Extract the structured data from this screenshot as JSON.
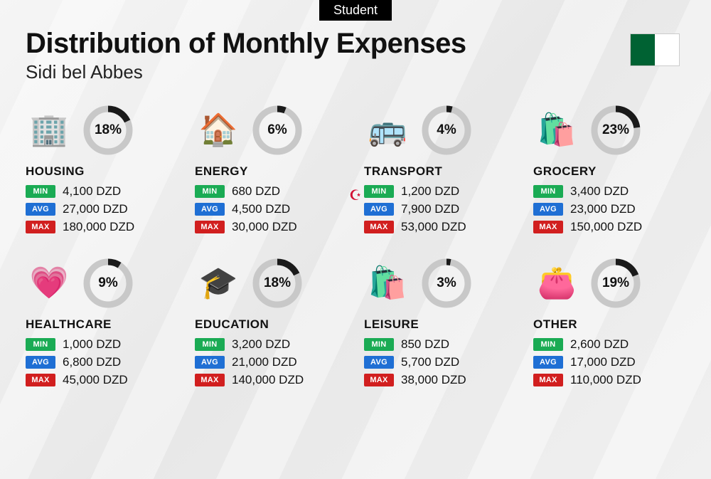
{
  "badge": "Student",
  "title": "Distribution of Monthly Expenses",
  "subtitle": "Sidi bel Abbes",
  "currency": "DZD",
  "labels": {
    "min": "MIN",
    "avg": "AVG",
    "max": "MAX"
  },
  "colors": {
    "min": "#1aab54",
    "avg": "#1f6fd4",
    "max": "#d11f1f",
    "ring_fg": "#1a1a1a",
    "ring_bg": "#c8c8c8",
    "badge_bg": "#000000",
    "text": "#111111"
  },
  "ring": {
    "radius": 30,
    "stroke_width": 9,
    "size": 72
  },
  "flag": {
    "left_color": "#006233",
    "right_color": "#ffffff",
    "emblem_color": "#d21034"
  },
  "categories": [
    {
      "key": "housing",
      "name": "HOUSING",
      "percent": 18,
      "icon": "🏢",
      "min": "4,100",
      "avg": "27,000",
      "max": "180,000"
    },
    {
      "key": "energy",
      "name": "ENERGY",
      "percent": 6,
      "icon": "🏠",
      "min": "680",
      "avg": "4,500",
      "max": "30,000"
    },
    {
      "key": "transport",
      "name": "TRANSPORT",
      "percent": 4,
      "icon": "🚌",
      "min": "1,200",
      "avg": "7,900",
      "max": "53,000"
    },
    {
      "key": "grocery",
      "name": "GROCERY",
      "percent": 23,
      "icon": "🛍️",
      "min": "3,400",
      "avg": "23,000",
      "max": "150,000"
    },
    {
      "key": "healthcare",
      "name": "HEALTHCARE",
      "percent": 9,
      "icon": "💗",
      "min": "1,000",
      "avg": "6,800",
      "max": "45,000"
    },
    {
      "key": "education",
      "name": "EDUCATION",
      "percent": 18,
      "icon": "🎓",
      "min": "3,200",
      "avg": "21,000",
      "max": "140,000"
    },
    {
      "key": "leisure",
      "name": "LEISURE",
      "percent": 3,
      "icon": "🛍️",
      "min": "850",
      "avg": "5,700",
      "max": "38,000"
    },
    {
      "key": "other",
      "name": "OTHER",
      "percent": 19,
      "icon": "👛",
      "min": "2,600",
      "avg": "17,000",
      "max": "110,000"
    }
  ]
}
